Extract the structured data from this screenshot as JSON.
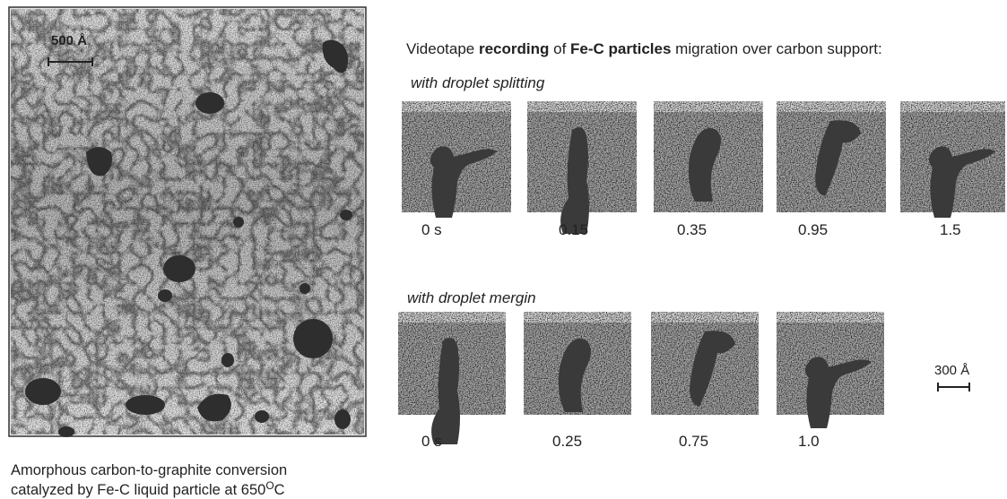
{
  "micrograph": {
    "scale_label": "500 Å",
    "caption": {
      "line1": "Amorphous carbon-to-graphite conversion",
      "line2": "catalyzed by Fe-C liquid particle at 650",
      "degree": "O",
      "unit": "C"
    }
  },
  "sequence": {
    "title": [
      "Videotape ",
      "recording",
      " of ",
      "Fe-C particles",
      " migration over carbon support:"
    ],
    "rows": [
      {
        "label": "with droplet splitting",
        "frames": [
          "0 s",
          "0.15",
          "0.35",
          "0.95",
          "1.5"
        ]
      },
      {
        "label": "with droplet mergin",
        "frames": [
          "0 s",
          "0.25",
          "0.75",
          "1.0"
        ]
      }
    ],
    "scale_label": "300 Å"
  }
}
